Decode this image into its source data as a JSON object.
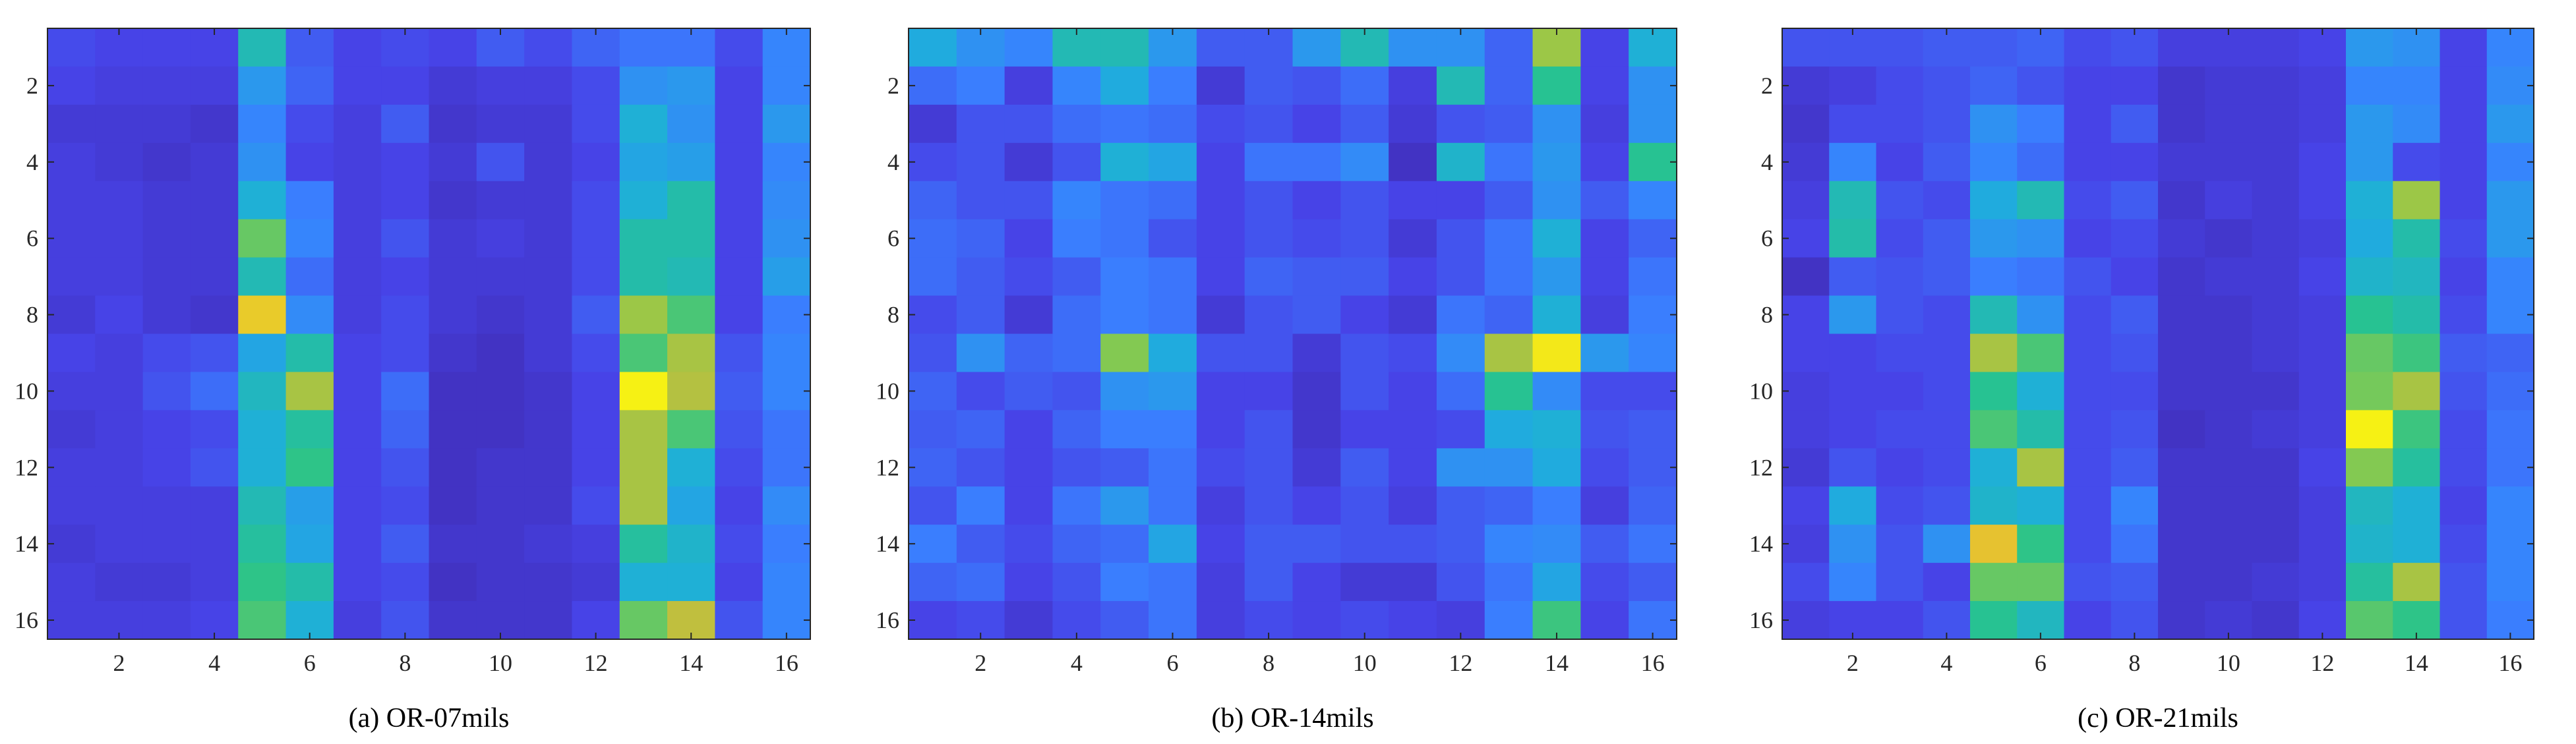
{
  "colors": {
    "background": "#ffffff",
    "axis": "#262626",
    "colormap": "parula",
    "colormap_stops": [
      "#3e26a8",
      "#4744e8",
      "#3980ff",
      "#1eaedc",
      "#28c48c",
      "#8dca4b",
      "#e2b736",
      "#f9fb0e"
    ]
  },
  "chart_data": [
    {
      "type": "heatmap",
      "caption": "(a) OR-07mils",
      "title": "",
      "xlabel": "",
      "ylabel": "",
      "x_ticks": [
        "2",
        "4",
        "6",
        "8",
        "10",
        "12",
        "14",
        "16"
      ],
      "y_ticks": [
        "2",
        "4",
        "6",
        "8",
        "10",
        "12",
        "14",
        "16"
      ],
      "x_range": [
        0.5,
        16.5
      ],
      "y_range": [
        0.5,
        16.5
      ],
      "y_direction": "reversed",
      "value_range": [
        0,
        1
      ],
      "grid": false,
      "values": [
        [
          0.16,
          0.14,
          0.14,
          0.14,
          0.5,
          0.2,
          0.14,
          0.16,
          0.14,
          0.2,
          0.16,
          0.22,
          0.26,
          0.26,
          0.16,
          0.3
        ],
        [
          0.14,
          0.12,
          0.12,
          0.12,
          0.36,
          0.22,
          0.14,
          0.14,
          0.1,
          0.12,
          0.12,
          0.16,
          0.34,
          0.36,
          0.14,
          0.3
        ],
        [
          0.1,
          0.1,
          0.1,
          0.08,
          0.3,
          0.16,
          0.12,
          0.2,
          0.08,
          0.1,
          0.1,
          0.16,
          0.44,
          0.34,
          0.14,
          0.36
        ],
        [
          0.12,
          0.1,
          0.08,
          0.1,
          0.34,
          0.14,
          0.12,
          0.14,
          0.1,
          0.18,
          0.1,
          0.14,
          0.4,
          0.38,
          0.14,
          0.3
        ],
        [
          0.12,
          0.12,
          0.1,
          0.1,
          0.44,
          0.28,
          0.12,
          0.14,
          0.08,
          0.1,
          0.1,
          0.16,
          0.44,
          0.52,
          0.14,
          0.32
        ],
        [
          0.12,
          0.12,
          0.1,
          0.1,
          0.66,
          0.3,
          0.12,
          0.18,
          0.1,
          0.12,
          0.1,
          0.16,
          0.52,
          0.52,
          0.14,
          0.34
        ],
        [
          0.12,
          0.12,
          0.1,
          0.1,
          0.5,
          0.24,
          0.12,
          0.14,
          0.1,
          0.1,
          0.1,
          0.16,
          0.52,
          0.5,
          0.14,
          0.38
        ],
        [
          0.1,
          0.14,
          0.1,
          0.08,
          0.9,
          0.32,
          0.12,
          0.16,
          0.1,
          0.08,
          0.1,
          0.2,
          0.74,
          0.62,
          0.14,
          0.28
        ],
        [
          0.14,
          0.12,
          0.16,
          0.18,
          0.4,
          0.52,
          0.14,
          0.16,
          0.08,
          0.06,
          0.1,
          0.16,
          0.62,
          0.76,
          0.18,
          0.3
        ],
        [
          0.12,
          0.12,
          0.18,
          0.24,
          0.48,
          0.76,
          0.14,
          0.24,
          0.06,
          0.06,
          0.08,
          0.14,
          0.98,
          0.78,
          0.2,
          0.3
        ],
        [
          0.1,
          0.12,
          0.14,
          0.16,
          0.44,
          0.54,
          0.14,
          0.22,
          0.06,
          0.06,
          0.08,
          0.14,
          0.76,
          0.62,
          0.18,
          0.26
        ],
        [
          0.12,
          0.12,
          0.14,
          0.18,
          0.44,
          0.58,
          0.14,
          0.18,
          0.06,
          0.08,
          0.08,
          0.14,
          0.76,
          0.44,
          0.16,
          0.26
        ],
        [
          0.12,
          0.12,
          0.12,
          0.12,
          0.5,
          0.38,
          0.14,
          0.16,
          0.06,
          0.08,
          0.08,
          0.16,
          0.76,
          0.4,
          0.14,
          0.32
        ],
        [
          0.1,
          0.12,
          0.12,
          0.12,
          0.54,
          0.4,
          0.14,
          0.2,
          0.08,
          0.08,
          0.1,
          0.12,
          0.54,
          0.46,
          0.16,
          0.28
        ],
        [
          0.12,
          0.1,
          0.1,
          0.12,
          0.58,
          0.52,
          0.14,
          0.16,
          0.06,
          0.08,
          0.08,
          0.1,
          0.44,
          0.44,
          0.14,
          0.3
        ],
        [
          0.12,
          0.12,
          0.12,
          0.14,
          0.62,
          0.44,
          0.12,
          0.18,
          0.08,
          0.08,
          0.08,
          0.14,
          0.66,
          0.8,
          0.18,
          0.3
        ]
      ]
    },
    {
      "type": "heatmap",
      "caption": "(b) OR-14mils",
      "title": "",
      "xlabel": "",
      "ylabel": "",
      "x_ticks": [
        "2",
        "4",
        "6",
        "8",
        "10",
        "12",
        "14",
        "16"
      ],
      "y_ticks": [
        "2",
        "4",
        "6",
        "8",
        "10",
        "12",
        "14",
        "16"
      ],
      "x_range": [
        0.5,
        16.5
      ],
      "y_range": [
        0.5,
        16.5
      ],
      "y_direction": "reversed",
      "value_range": [
        0,
        1
      ],
      "grid": false,
      "values": [
        [
          0.42,
          0.34,
          0.3,
          0.5,
          0.5,
          0.36,
          0.2,
          0.2,
          0.36,
          0.5,
          0.34,
          0.34,
          0.22,
          0.74,
          0.14,
          0.44
        ],
        [
          0.24,
          0.28,
          0.12,
          0.3,
          0.42,
          0.28,
          0.1,
          0.2,
          0.18,
          0.24,
          0.12,
          0.5,
          0.22,
          0.56,
          0.14,
          0.34
        ],
        [
          0.1,
          0.18,
          0.18,
          0.24,
          0.26,
          0.24,
          0.16,
          0.18,
          0.14,
          0.2,
          0.1,
          0.18,
          0.2,
          0.34,
          0.12,
          0.34
        ],
        [
          0.16,
          0.18,
          0.1,
          0.18,
          0.44,
          0.4,
          0.14,
          0.26,
          0.26,
          0.32,
          0.06,
          0.46,
          0.26,
          0.36,
          0.14,
          0.56
        ],
        [
          0.22,
          0.18,
          0.18,
          0.3,
          0.26,
          0.24,
          0.14,
          0.18,
          0.14,
          0.18,
          0.14,
          0.14,
          0.2,
          0.34,
          0.2,
          0.3
        ],
        [
          0.24,
          0.22,
          0.14,
          0.28,
          0.26,
          0.18,
          0.14,
          0.18,
          0.16,
          0.18,
          0.1,
          0.18,
          0.26,
          0.44,
          0.14,
          0.22
        ],
        [
          0.24,
          0.2,
          0.16,
          0.2,
          0.28,
          0.26,
          0.14,
          0.22,
          0.2,
          0.2,
          0.14,
          0.18,
          0.26,
          0.36,
          0.14,
          0.26
        ],
        [
          0.16,
          0.2,
          0.1,
          0.24,
          0.28,
          0.26,
          0.1,
          0.18,
          0.2,
          0.14,
          0.1,
          0.26,
          0.22,
          0.44,
          0.12,
          0.28
        ],
        [
          0.18,
          0.34,
          0.22,
          0.24,
          0.7,
          0.42,
          0.18,
          0.18,
          0.1,
          0.18,
          0.16,
          0.32,
          0.76,
          0.96,
          0.36,
          0.3
        ],
        [
          0.22,
          0.16,
          0.2,
          0.18,
          0.34,
          0.36,
          0.14,
          0.14,
          0.08,
          0.18,
          0.14,
          0.24,
          0.56,
          0.32,
          0.16,
          0.16
        ],
        [
          0.2,
          0.22,
          0.14,
          0.22,
          0.28,
          0.28,
          0.14,
          0.18,
          0.08,
          0.14,
          0.14,
          0.16,
          0.42,
          0.44,
          0.18,
          0.2
        ],
        [
          0.22,
          0.18,
          0.14,
          0.18,
          0.2,
          0.26,
          0.16,
          0.18,
          0.1,
          0.2,
          0.14,
          0.34,
          0.34,
          0.42,
          0.16,
          0.2
        ],
        [
          0.18,
          0.28,
          0.14,
          0.26,
          0.36,
          0.26,
          0.12,
          0.18,
          0.14,
          0.18,
          0.12,
          0.2,
          0.22,
          0.28,
          0.12,
          0.22
        ],
        [
          0.28,
          0.2,
          0.16,
          0.22,
          0.24,
          0.4,
          0.14,
          0.2,
          0.2,
          0.18,
          0.18,
          0.2,
          0.3,
          0.32,
          0.2,
          0.26
        ],
        [
          0.22,
          0.24,
          0.14,
          0.18,
          0.28,
          0.26,
          0.12,
          0.2,
          0.14,
          0.1,
          0.1,
          0.18,
          0.26,
          0.4,
          0.16,
          0.2
        ],
        [
          0.14,
          0.16,
          0.1,
          0.16,
          0.2,
          0.26,
          0.12,
          0.16,
          0.14,
          0.16,
          0.14,
          0.12,
          0.28,
          0.6,
          0.14,
          0.26
        ]
      ]
    },
    {
      "type": "heatmap",
      "caption": "(c) OR-21mils",
      "title": "",
      "xlabel": "",
      "ylabel": "",
      "x_ticks": [
        "2",
        "4",
        "6",
        "8",
        "10",
        "12",
        "14",
        "16"
      ],
      "y_ticks": [
        "2",
        "4",
        "6",
        "8",
        "10",
        "12",
        "14",
        "16"
      ],
      "x_range": [
        0.5,
        16.5
      ],
      "y_range": [
        0.5,
        16.5
      ],
      "y_direction": "reversed",
      "value_range": [
        0,
        1
      ],
      "grid": false,
      "values": [
        [
          0.18,
          0.18,
          0.18,
          0.2,
          0.2,
          0.22,
          0.16,
          0.18,
          0.12,
          0.12,
          0.12,
          0.14,
          0.36,
          0.34,
          0.14,
          0.3
        ],
        [
          0.1,
          0.12,
          0.16,
          0.18,
          0.22,
          0.18,
          0.14,
          0.14,
          0.08,
          0.1,
          0.1,
          0.12,
          0.3,
          0.3,
          0.14,
          0.32
        ],
        [
          0.08,
          0.16,
          0.16,
          0.18,
          0.34,
          0.28,
          0.14,
          0.2,
          0.08,
          0.1,
          0.1,
          0.12,
          0.36,
          0.32,
          0.14,
          0.36
        ],
        [
          0.1,
          0.3,
          0.14,
          0.2,
          0.3,
          0.24,
          0.14,
          0.14,
          0.1,
          0.1,
          0.1,
          0.14,
          0.36,
          0.16,
          0.14,
          0.3
        ],
        [
          0.12,
          0.5,
          0.18,
          0.16,
          0.42,
          0.5,
          0.16,
          0.2,
          0.08,
          0.12,
          0.1,
          0.14,
          0.44,
          0.74,
          0.14,
          0.36
        ],
        [
          0.14,
          0.52,
          0.16,
          0.2,
          0.36,
          0.34,
          0.14,
          0.16,
          0.1,
          0.08,
          0.1,
          0.12,
          0.42,
          0.52,
          0.16,
          0.36
        ],
        [
          0.06,
          0.2,
          0.18,
          0.2,
          0.28,
          0.26,
          0.18,
          0.14,
          0.08,
          0.1,
          0.1,
          0.14,
          0.46,
          0.48,
          0.14,
          0.3
        ],
        [
          0.14,
          0.36,
          0.18,
          0.16,
          0.5,
          0.34,
          0.16,
          0.2,
          0.08,
          0.08,
          0.1,
          0.12,
          0.56,
          0.52,
          0.16,
          0.3
        ],
        [
          0.14,
          0.14,
          0.16,
          0.16,
          0.76,
          0.62,
          0.16,
          0.18,
          0.08,
          0.08,
          0.1,
          0.12,
          0.66,
          0.6,
          0.2,
          0.22
        ],
        [
          0.12,
          0.14,
          0.14,
          0.16,
          0.56,
          0.44,
          0.16,
          0.16,
          0.08,
          0.08,
          0.08,
          0.12,
          0.68,
          0.76,
          0.18,
          0.24
        ],
        [
          0.12,
          0.14,
          0.16,
          0.16,
          0.62,
          0.52,
          0.16,
          0.18,
          0.06,
          0.08,
          0.1,
          0.12,
          0.98,
          0.6,
          0.16,
          0.26
        ],
        [
          0.1,
          0.18,
          0.14,
          0.16,
          0.44,
          0.76,
          0.16,
          0.2,
          0.08,
          0.08,
          0.08,
          0.14,
          0.7,
          0.54,
          0.16,
          0.26
        ],
        [
          0.14,
          0.42,
          0.16,
          0.18,
          0.46,
          0.44,
          0.16,
          0.3,
          0.08,
          0.08,
          0.08,
          0.12,
          0.48,
          0.44,
          0.14,
          0.3
        ],
        [
          0.12,
          0.34,
          0.18,
          0.34,
          0.88,
          0.58,
          0.16,
          0.26,
          0.08,
          0.08,
          0.08,
          0.12,
          0.46,
          0.44,
          0.16,
          0.3
        ],
        [
          0.16,
          0.3,
          0.18,
          0.14,
          0.66,
          0.66,
          0.18,
          0.2,
          0.08,
          0.08,
          0.1,
          0.12,
          0.54,
          0.76,
          0.18,
          0.3
        ],
        [
          0.12,
          0.14,
          0.14,
          0.18,
          0.56,
          0.48,
          0.14,
          0.18,
          0.08,
          0.1,
          0.08,
          0.14,
          0.64,
          0.58,
          0.18,
          0.28
        ]
      ]
    }
  ]
}
